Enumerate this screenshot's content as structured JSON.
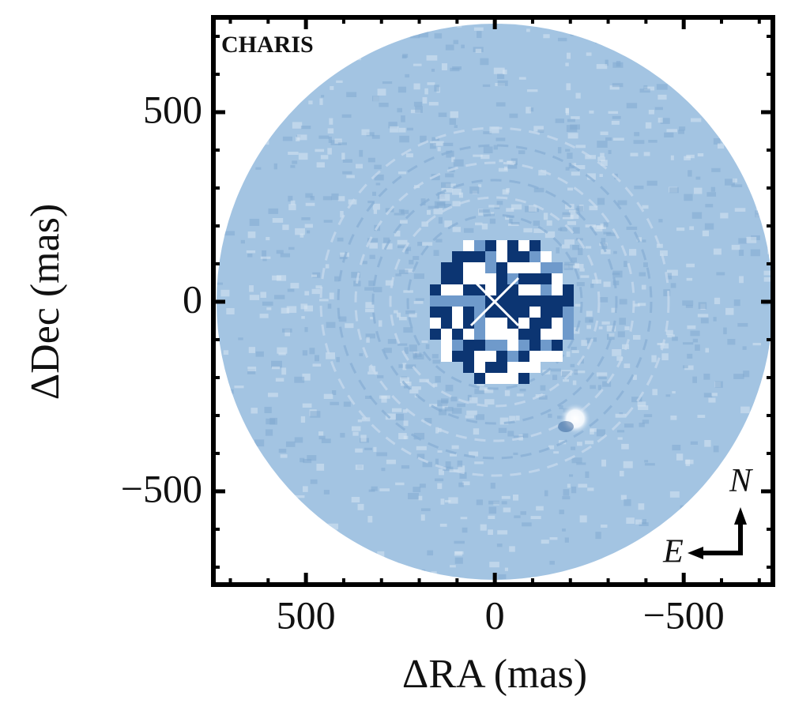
{
  "chart_data": {
    "type": "image",
    "xlabel": "ΔRA (mas)",
    "ylabel": "ΔDec (mas)",
    "annotations": [
      "CHARIS",
      "N",
      "E"
    ],
    "xlim": [
      745,
      -736
    ],
    "ylim": [
      -746,
      750
    ],
    "xticks": [
      500,
      0,
      {
        "value": -500,
        "label": "−500"
      }
    ],
    "yticks": [
      {
        "value": -500,
        "label": "−500"
      },
      0,
      500
    ],
    "color": "#a3c4e2"
  }
}
